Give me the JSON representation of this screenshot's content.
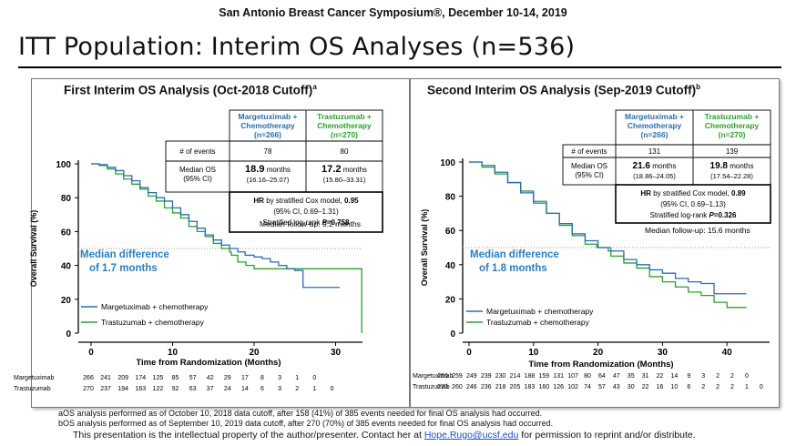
{
  "header": {
    "conference": "San Antonio Breast Cancer Symposium®, December 10-14, 2019"
  },
  "title": "ITT Population: Interim OS Analyses (n=536)",
  "colors": {
    "margetuximab": "#2a6db0",
    "trastuzumab": "#2ca02c"
  },
  "panels": [
    {
      "subtitle": "First Interim OS Analysis (Oct-2018 Cutoff)",
      "subtitle_sup": "a",
      "table": {
        "col1": "Margetuximab + Chemotherapy (n=266)",
        "col2": "Trastuzumab + Chemotherapy (n=270)",
        "events_label": "# of events",
        "events1": "78",
        "events2": "80",
        "median_label": "Median OS (95% CI)",
        "median1": "18.9",
        "median1_ci": "(16.16–25.07)",
        "median2": "17.2",
        "median2_ci": "(15.80–33.31)",
        "months": "months",
        "hr_line": "HR by stratified Cox model, 0.95",
        "ci_line": "(95% CI, 0.69–1.31)",
        "p_line": "Stratified log-rank P=0.758"
      },
      "followup": "Median follow-up: 9.2 months",
      "median_diff": [
        "Median difference",
        "of 1.7 months"
      ],
      "legend": [
        "Margetuximab + chemotherapy",
        "Trastuzumab + chemotherapy"
      ],
      "ylabel": "Overall Survival (%)",
      "xlabel": "Time from Randomization (Months)",
      "y_ticks": [
        "0",
        "20",
        "40",
        "60",
        "80",
        "100"
      ],
      "x_ticks": [
        "0",
        "10",
        "20",
        "30"
      ],
      "risk_labels": [
        "Margetuximab",
        "Trastuzumab"
      ],
      "risk_m": [
        "266",
        "241",
        "209",
        "174",
        "125",
        "85",
        "57",
        "42",
        "29",
        "17",
        "8",
        "3",
        "1",
        "0"
      ],
      "risk_t": [
        "270",
        "237",
        "194",
        "163",
        "122",
        "92",
        "63",
        "37",
        "24",
        "14",
        "6",
        "3",
        "2",
        "1",
        "0"
      ]
    },
    {
      "subtitle": "Second Interim OS Analysis (Sep-2019 Cutoff)",
      "subtitle_sup": "b",
      "table": {
        "col1": "Margetuximab + Chemotherapy (n=266)",
        "col2": "Trastuzumab + Chemotherapy (n=270)",
        "events_label": "# of events",
        "events1": "131",
        "events2": "139",
        "median_label": "Median OS (95% CI)",
        "median1": "21.6",
        "median1_ci": "(18.86–24.05)",
        "median2": "19.8",
        "median2_ci": "(17.54–22.28)",
        "months": "months",
        "hr_line": "HR by stratified Cox model, 0.89",
        "ci_line": "(95% CI, 0.69–1.13)",
        "p_line": "Stratified log-rank P=0.326"
      },
      "followup": "Median follow-up: 15.6 months",
      "median_diff": [
        "Median difference",
        "of 1.8 months"
      ],
      "legend": [
        "Margetuximab + chemotherapy",
        "Trastuzumab + chemotherapy"
      ],
      "ylabel": "Overall Survival (%)",
      "xlabel": "Time from Randomization (Months)",
      "y_ticks": [
        "0",
        "20",
        "40",
        "60",
        "80",
        "100"
      ],
      "x_ticks": [
        "0",
        "10",
        "20",
        "30",
        "40"
      ],
      "risk_labels": [
        "Margetuximab",
        "Trastuzumab"
      ],
      "risk_m": [
        "266",
        "259",
        "249",
        "239",
        "230",
        "214",
        "188",
        "159",
        "131",
        "107",
        "80",
        "64",
        "47",
        "35",
        "31",
        "22",
        "14",
        "9",
        "3",
        "2",
        "2",
        "0"
      ],
      "risk_t": [
        "270",
        "260",
        "246",
        "236",
        "218",
        "205",
        "183",
        "160",
        "126",
        "102",
        "74",
        "57",
        "43",
        "30",
        "22",
        "16",
        "10",
        "6",
        "2",
        "2",
        "2",
        "1",
        "0"
      ]
    }
  ],
  "chart_data": [
    {
      "type": "line",
      "title": "First Interim OS Analysis (Oct-2018 Cutoff)",
      "xlabel": "Time from Randomization (Months)",
      "ylabel": "Overall Survival (%)",
      "xlim": [
        0,
        33
      ],
      "ylim": [
        0,
        100
      ],
      "series": [
        {
          "name": "Margetuximab + chemotherapy",
          "x": [
            0,
            1,
            2,
            3,
            4,
            5,
            6,
            7,
            8,
            9,
            10,
            11,
            12,
            13,
            14,
            15,
            16,
            17,
            18,
            18.9,
            20,
            21,
            22,
            23,
            24,
            25,
            26,
            27,
            29,
            30.5
          ],
          "y": [
            100,
            99.5,
            98,
            96,
            93,
            90,
            86,
            83,
            80,
            78,
            74,
            70,
            66,
            62,
            58,
            55,
            52,
            50,
            48,
            46,
            45,
            44,
            42,
            40,
            38,
            37,
            27,
            27,
            27,
            27
          ]
        },
        {
          "name": "Trastuzumab + chemotherapy",
          "x": [
            0,
            1,
            2,
            3,
            4,
            5,
            6,
            7,
            8,
            9,
            10,
            11,
            12,
            13,
            14,
            15,
            16,
            17,
            17.2,
            18,
            19,
            20,
            22,
            24,
            26,
            28,
            30,
            32,
            33,
            33.2
          ],
          "y": [
            100,
            99,
            97,
            94,
            91,
            88,
            85,
            81,
            78,
            74,
            71,
            68,
            63,
            60,
            57,
            53,
            50,
            48,
            46,
            42,
            40,
            38,
            38,
            38,
            38,
            38,
            38,
            38,
            38,
            0
          ]
        }
      ]
    },
    {
      "type": "line",
      "title": "Second Interim OS Analysis (Sep-2019 Cutoff)",
      "xlabel": "Time from Randomization (Months)",
      "ylabel": "Overall Survival (%)",
      "xlim": [
        0,
        44
      ],
      "ylim": [
        0,
        100
      ],
      "series": [
        {
          "name": "Margetuximab + chemotherapy",
          "x": [
            0,
            2,
            4,
            6,
            8,
            10,
            12,
            14,
            16,
            18,
            20,
            21.6,
            24,
            26,
            28,
            30,
            32,
            34,
            36,
            38,
            40,
            42,
            43
          ],
          "y": [
            100,
            98,
            94,
            88,
            82,
            76,
            70,
            64,
            58,
            54,
            50,
            48,
            43,
            40,
            37,
            35,
            32,
            30,
            29,
            23,
            23,
            23,
            23
          ]
        },
        {
          "name": "Trastuzumab + chemotherapy",
          "x": [
            0,
            2,
            4,
            6,
            8,
            10,
            12,
            14,
            16,
            18,
            19.8,
            22,
            24,
            26,
            28,
            30,
            32,
            34,
            36,
            38,
            40,
            42,
            43
          ],
          "y": [
            100,
            97,
            93,
            88,
            83,
            77,
            70,
            63,
            57,
            52,
            50,
            45,
            41,
            38,
            33,
            30,
            27,
            24,
            22,
            18,
            15,
            15,
            15
          ]
        }
      ]
    }
  ],
  "footnotes": [
    "aOS analysis performed as of October 10, 2018 data cutoff, after 158 (41%) of 385 events needed for final OS analysis had occurred.",
    "bOS analysis performed as of September 10, 2019 data cutoff, after 270 (70%) of 385 events needed for final OS analysis had occurred."
  ],
  "statement": {
    "pre": "This presentation is the intellectual property of the author/presenter. Contact her at ",
    "email": "Hope.Rugo@ucsf.edu",
    "post": " for permission to reprint and/or distribute."
  }
}
